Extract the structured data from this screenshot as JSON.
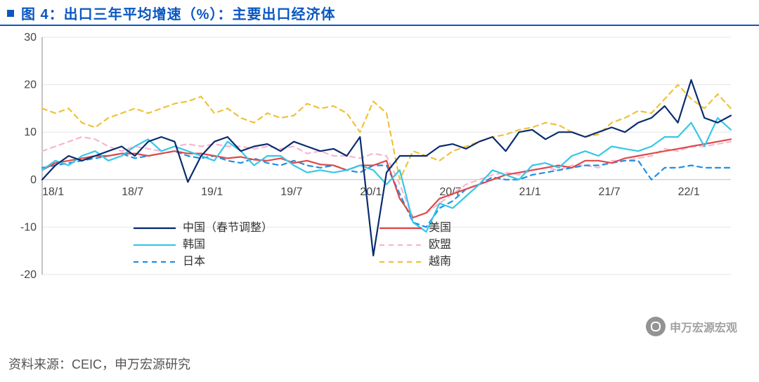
{
  "title": "图 4：出口三年平均增速（%）：主要出口经济体",
  "source": "资料来源：CEIC，申万宏源研究",
  "watermark": "申万宏源宏观",
  "chart": {
    "type": "line",
    "background_color": "#ffffff",
    "grid_color": "#e6e6e6",
    "axis_color": "#888888",
    "zero_color": "#bfbfbf",
    "title_color": "#0a57c2",
    "text_color": "#444444",
    "font_family": "Microsoft YaHei",
    "title_fontsize": 20,
    "tick_fontsize": 16,
    "legend_fontsize": 16,
    "line_width": 2.2,
    "ylim": [
      -20,
      30
    ],
    "ytick_step": 10,
    "yticks": [
      -20,
      -10,
      0,
      10,
      20,
      30
    ],
    "x_labels": [
      "18/1",
      "18/7",
      "19/1",
      "19/7",
      "20/1",
      "20/7",
      "21/1",
      "21/7",
      "22/1"
    ],
    "x_count": 53,
    "legend": {
      "position": "bottom-inside",
      "items": [
        {
          "label": "中国（春节调整）",
          "series_key": "china"
        },
        {
          "label": "美国",
          "series_key": "usa"
        },
        {
          "label": "韩国",
          "series_key": "korea"
        },
        {
          "label": "欧盟",
          "series_key": "eu"
        },
        {
          "label": "日本",
          "series_key": "japan"
        },
        {
          "label": "越南",
          "series_key": "vietnam"
        }
      ]
    },
    "series": {
      "china": {
        "label": "中国（春节调整）",
        "color": "#0a2c6e",
        "dash": "solid",
        "data": [
          0,
          3,
          5,
          4,
          5,
          6,
          7,
          5,
          8,
          9,
          8,
          -0.5,
          5,
          8,
          9,
          6,
          7,
          7.5,
          6,
          8,
          7,
          6,
          6.5,
          5,
          9,
          -16,
          1.5,
          5,
          5,
          5,
          7,
          7.5,
          6.5,
          8,
          9,
          6,
          10,
          10.5,
          8.5,
          10,
          10,
          9,
          10,
          11,
          10,
          12,
          13,
          15.5,
          12,
          21,
          13,
          12,
          13.5
        ]
      },
      "usa": {
        "label": "美国",
        "color": "#e04848",
        "dash": "solid",
        "data": [
          2,
          3.5,
          4,
          4.5,
          5,
          5,
          5.5,
          5.5,
          5,
          5.5,
          6,
          5.5,
          5.5,
          5,
          4.5,
          4.8,
          4.2,
          4,
          4.5,
          3.5,
          4,
          3.2,
          3,
          2,
          3,
          3,
          4,
          -4,
          -8,
          -7,
          -4,
          -3,
          -2,
          -1,
          0,
          1,
          1.5,
          2,
          2.5,
          3,
          2.5,
          4,
          4,
          3.5,
          4.5,
          5,
          5.5,
          6,
          6.5,
          7,
          7.5,
          8,
          8.5
        ]
      },
      "korea": {
        "label": "韩国",
        "color": "#35c7e8",
        "dash": "solid",
        "data": [
          2,
          4,
          3,
          5,
          6,
          4,
          5,
          7,
          8.5,
          6,
          7,
          6,
          5,
          4,
          8,
          6,
          3,
          5,
          5,
          3,
          1.5,
          2,
          1.5,
          2,
          3,
          2,
          -1,
          2,
          -9,
          -11,
          -5,
          -6,
          -3.5,
          -1,
          2,
          1,
          0,
          3,
          3.5,
          2.5,
          5,
          6,
          5,
          7,
          6.5,
          6,
          7,
          9,
          9,
          12,
          7,
          13,
          10.5
        ]
      },
      "eu": {
        "label": "欧盟",
        "color": "#f8b6d0",
        "dash": "dashed",
        "data": [
          6,
          7,
          8,
          9,
          8.5,
          7,
          6,
          7,
          6.5,
          6,
          7,
          7.5,
          7,
          7.5,
          7,
          7,
          6.5,
          7,
          6.5,
          7,
          5.5,
          6,
          5,
          5,
          4.5,
          5.5,
          5,
          -1,
          -8,
          -7,
          -5,
          -3,
          -1,
          0,
          1,
          1.5,
          1,
          2,
          2.5,
          2,
          3,
          3,
          2.5,
          4,
          4,
          4.5,
          5,
          6.5,
          6,
          7,
          7,
          7.5,
          8
        ]
      },
      "japan": {
        "label": "日本",
        "color": "#1f8fe6",
        "dash": "dashed",
        "data": [
          2.5,
          3,
          3.5,
          4,
          4.5,
          5,
          5.5,
          4.5,
          5,
          5.5,
          6,
          5,
          4.5,
          5,
          4,
          3.5,
          4.5,
          3.5,
          3,
          4,
          3,
          2.5,
          3,
          2,
          1.5,
          3,
          3,
          -3,
          -9,
          -10,
          -6,
          -4.5,
          -2,
          -1,
          0.5,
          0,
          0,
          1,
          1.5,
          2,
          2.5,
          3,
          3,
          3.5,
          4,
          4,
          0,
          2.5,
          2.5,
          3,
          2.5,
          2.5,
          2.5
        ]
      },
      "vietnam": {
        "label": "越南",
        "color": "#efc23a",
        "dash": "dashed",
        "data": [
          15,
          14,
          15,
          12,
          11,
          13,
          14,
          15,
          14,
          15,
          16,
          16.5,
          17.5,
          14,
          15,
          13,
          12,
          14,
          13,
          13.5,
          16,
          15,
          15.5,
          14,
          10,
          16.5,
          14,
          0,
          6,
          5,
          4,
          6,
          7,
          8,
          9,
          9.5,
          10.5,
          11,
          12,
          11.5,
          10,
          9,
          9.5,
          12,
          13,
          14.5,
          14,
          17,
          20,
          17,
          15,
          18,
          15
        ]
      }
    }
  }
}
